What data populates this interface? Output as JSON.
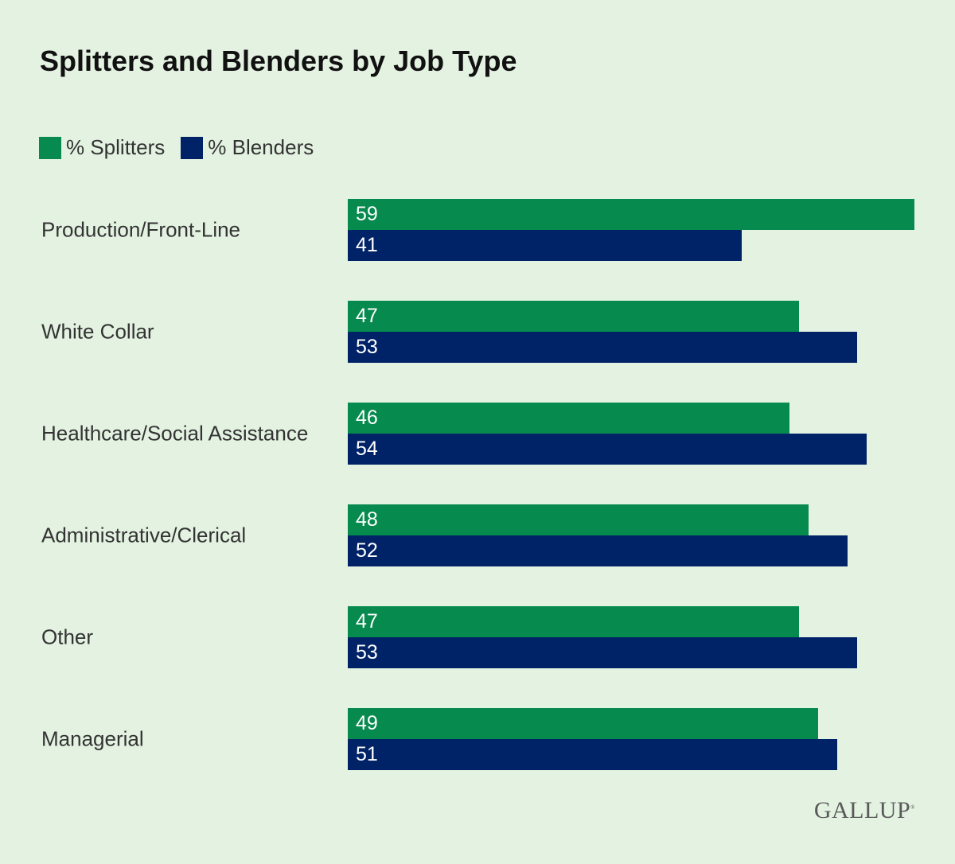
{
  "chart_data": {
    "type": "bar",
    "orientation": "horizontal",
    "title": "Splitters and Blenders by Job Type",
    "categories": [
      "Production/Front-Line",
      "White Collar",
      "Healthcare/Social Assistance",
      "Administrative/Clerical",
      "Other",
      "Managerial"
    ],
    "series": [
      {
        "name": "% Splitters",
        "color": "#068a4e",
        "values": [
          59,
          47,
          46,
          48,
          47,
          49
        ]
      },
      {
        "name": "% Blenders",
        "color": "#002266",
        "values": [
          41,
          53,
          54,
          52,
          53,
          51
        ]
      }
    ],
    "xlim": [
      0,
      59
    ],
    "grid": false,
    "legend": "top-left",
    "data_labels": true
  },
  "logo": "GALLUP"
}
